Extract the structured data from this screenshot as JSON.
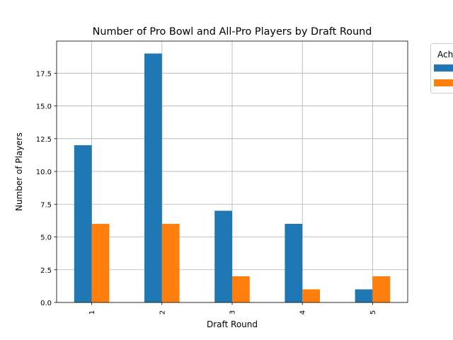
{
  "chart_data": {
    "type": "bar",
    "title": "Number of Pro Bowl and All-Pro Players by Draft Round",
    "xlabel": "Draft Round",
    "ylabel": "Number of Players",
    "categories": [
      "1",
      "2",
      "3",
      "4",
      "5"
    ],
    "series": [
      {
        "name": "",
        "color": "#1f77b4",
        "values": [
          12,
          19,
          7,
          6,
          1
        ]
      },
      {
        "name": "",
        "color": "#ff7f0e",
        "values": [
          6,
          6,
          2,
          1,
          2
        ]
      }
    ],
    "ylim": [
      0,
      19.95
    ],
    "yticks": [
      0.0,
      2.5,
      5.0,
      7.5,
      10.0,
      12.5,
      15.0,
      17.5
    ],
    "ytick_labels": [
      "0.0",
      "2.5",
      "5.0",
      "7.5",
      "10.0",
      "12.5",
      "15.0",
      "17.5"
    ],
    "grid": true,
    "legend": {
      "title": "Ach",
      "placement": "outside-top-right"
    }
  }
}
